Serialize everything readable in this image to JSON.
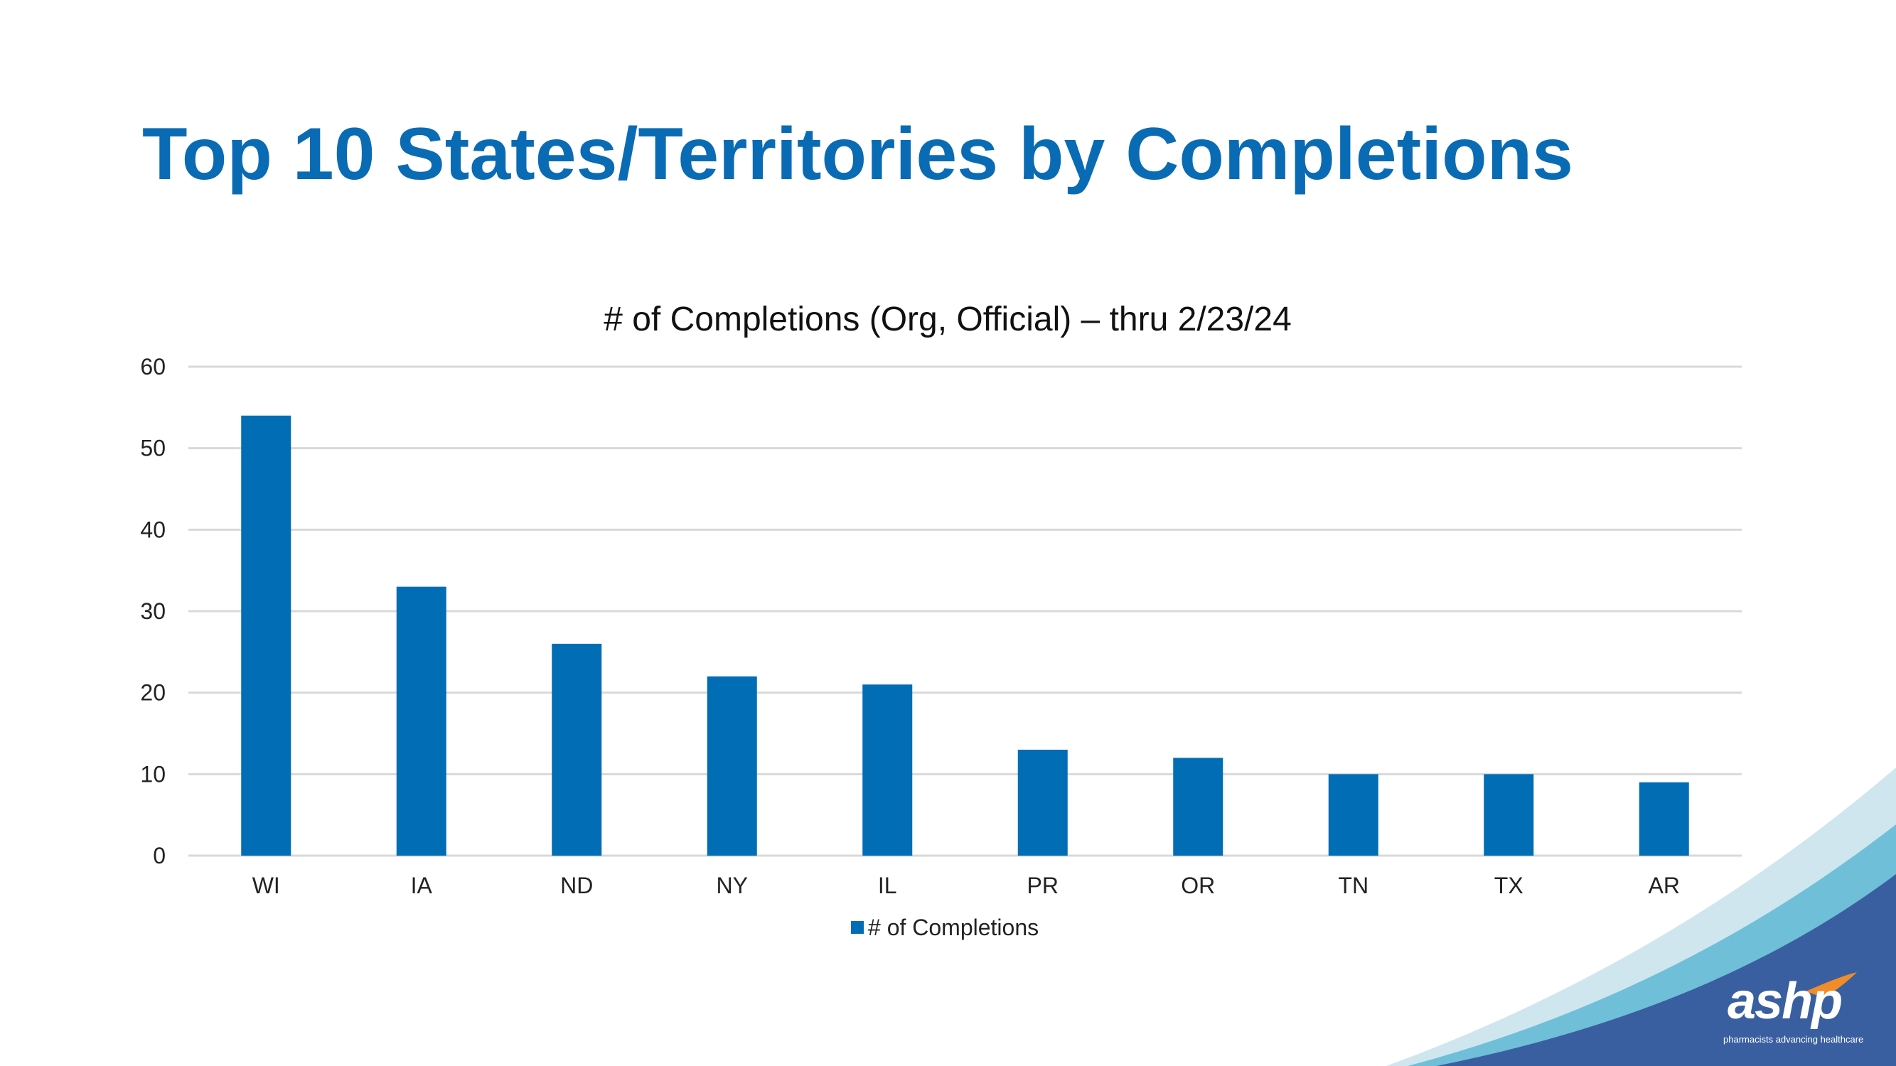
{
  "slide": {
    "title": "Top 10 States/Territories by Completions"
  },
  "brand": {
    "logo_text": "ashp",
    "tagline": "pharmacists advancing healthcare",
    "colors": {
      "wave_light": "#cfe6ef",
      "wave_mid": "#6fbfd8",
      "wave_dark": "#3a5fa0",
      "accent": "#f28c28"
    }
  },
  "chart_data": {
    "type": "bar",
    "title": "# of Completions (Org, Official) – thru 2/23/24",
    "categories": [
      "WI",
      "IA",
      "ND",
      "NY",
      "IL",
      "PR",
      "OR",
      "TN",
      "TX",
      "AR"
    ],
    "series": [
      {
        "name": "# of Completions",
        "values": [
          54,
          33,
          26,
          22,
          21,
          13,
          12,
          10,
          10,
          9
        ],
        "color": "#016db4"
      }
    ],
    "ylim": [
      0,
      60
    ],
    "yticks": [
      0,
      10,
      20,
      30,
      40,
      50,
      60
    ],
    "grid": true,
    "legend": "bottom"
  }
}
